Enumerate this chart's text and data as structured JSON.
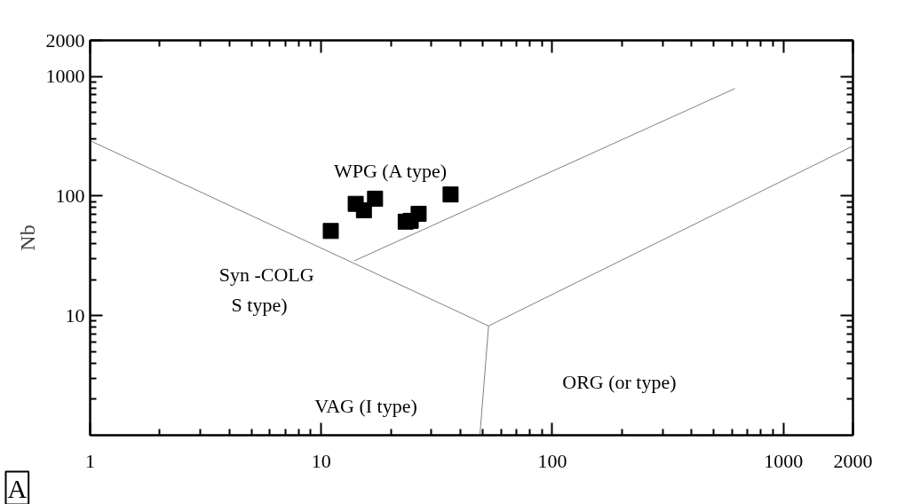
{
  "chart_data": {
    "type": "scatter",
    "ylabel": "Nb",
    "log": "xy",
    "xlim": [
      1,
      2000
    ],
    "ylim": [
      1,
      2000
    ],
    "xticks": [
      1,
      10,
      100,
      1000,
      2000
    ],
    "yticks": [
      10,
      100,
      1000,
      2000
    ],
    "grid": false,
    "series": [
      {
        "marker": "square",
        "color": "#000000",
        "x": [
          11.0,
          14.1,
          15.3,
          17.1,
          23.2,
          24.4,
          26.4,
          36.3
        ],
        "values": [
          51,
          86,
          76,
          95,
          61,
          62,
          71,
          103
        ]
      },
      {
        "type": "line",
        "color": "#808080",
        "x": [
          1,
          53
        ],
        "values": [
          290,
          8.2
        ]
      },
      {
        "type": "line",
        "color": "#808080",
        "x": [
          13.9,
          617
        ],
        "values": [
          28.7,
          791
        ]
      },
      {
        "type": "line",
        "color": "#808080",
        "x": [
          53,
          2000
        ],
        "values": [
          8.2,
          262
        ]
      },
      {
        "type": "line",
        "color": "#808080",
        "x": [
          53,
          48.6
        ],
        "values": [
          8.2,
          1
        ]
      }
    ],
    "annotations": [
      "WPG (A type)",
      "Syn -COLG",
      "S type)",
      "VAG (I type)",
      "ORG (or type)",
      "A"
    ]
  }
}
